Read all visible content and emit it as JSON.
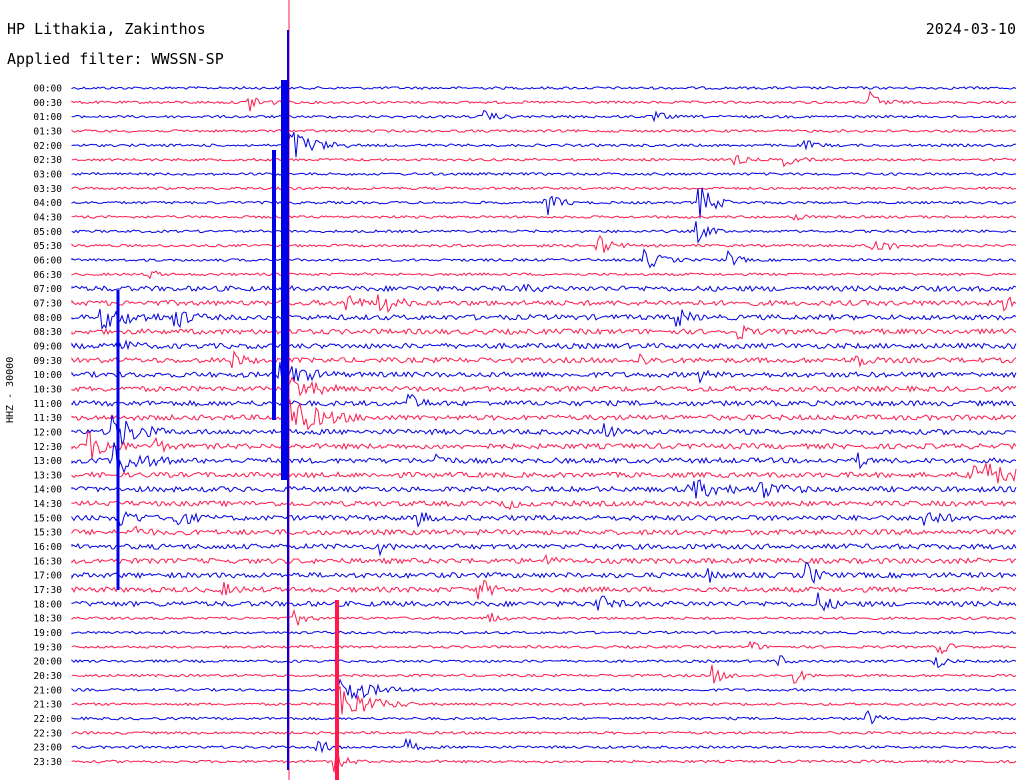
{
  "header": {
    "station": "HP Lithakia, Zakinthos",
    "date": "2024-03-10",
    "filter": "Applied filter: WWSSN-SP"
  },
  "colors": {
    "trace_a": "#0000e6",
    "trace_b": "#ff1a4b",
    "marker": "#cc0000"
  },
  "chart_data": {
    "type": "line",
    "title": "HP Lithakia, Zakinthos",
    "ylabel": "HHZ - 30000",
    "row_interval": "30 min",
    "rows": [
      "00:00",
      "00:30",
      "01:00",
      "01:30",
      "02:00",
      "02:30",
      "03:00",
      "03:30",
      "04:00",
      "04:30",
      "05:00",
      "05:30",
      "06:00",
      "06:30",
      "07:00",
      "07:30",
      "08:00",
      "08:30",
      "09:00",
      "09:30",
      "10:00",
      "10:30",
      "11:00",
      "11:30",
      "12:00",
      "12:30",
      "13:00",
      "13:30",
      "14:00",
      "14:30",
      "15:00",
      "15:30",
      "16:00",
      "16:30",
      "17:00",
      "17:30",
      "18:00",
      "18:30",
      "19:00",
      "19:30",
      "20:00",
      "20:30",
      "21:00",
      "21:30",
      "22:00",
      "22:30",
      "23:00",
      "23:30"
    ],
    "series_colors": [
      "blue",
      "red"
    ]
  }
}
